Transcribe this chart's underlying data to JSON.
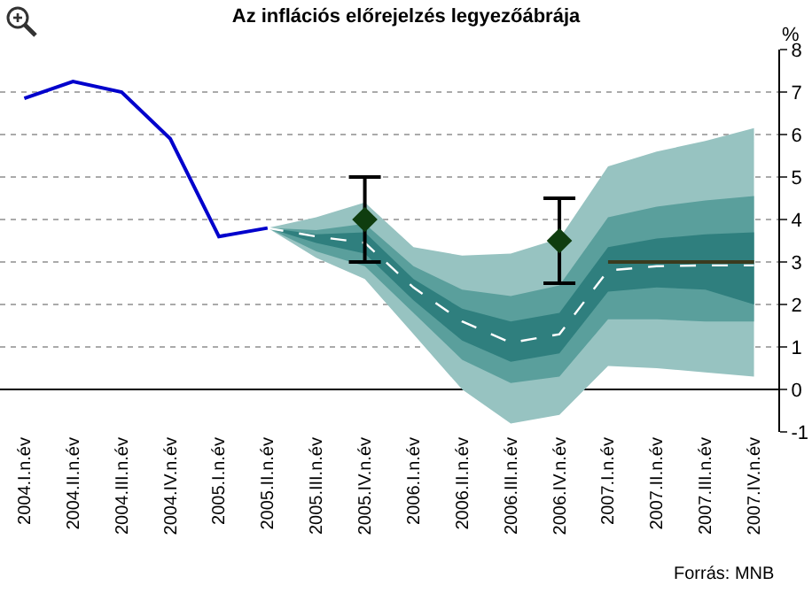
{
  "chart_data": {
    "type": "line",
    "title": "Az inflációs előrejelzés legyezőábrája",
    "ylabel": "%",
    "categories": [
      "2004.I.n.év",
      "2004.II.n.év",
      "2004.III.n.év",
      "2004.IV.n.év",
      "2005.I.n.év",
      "2005.II.n.év",
      "2005.III.n.év",
      "2005.IV.n.év",
      "2006.I.n.év",
      "2006.II.n.év",
      "2006.III.n.év",
      "2006.IV.n.év",
      "2007.I.n.év",
      "2007.II.n.év",
      "2007.III.n.év",
      "2007.IV.n.év"
    ],
    "series": [
      {
        "type": "line",
        "color": "#97c3c1",
        "values": [
          null,
          null,
          null,
          null,
          null,
          null,
          null,
          null,
          null,
          null,
          null,
          null,
          null,
          null,
          null,
          null
        ],
        "upper": [
          null,
          null,
          null,
          null,
          null,
          3.8,
          4.05,
          4.4,
          3.35,
          3.15,
          3.2,
          3.55,
          5.25,
          5.6,
          5.85,
          6.15
        ],
        "lower": [
          null,
          null,
          null,
          null,
          null,
          3.8,
          3.1,
          2.6,
          1.3,
          0.0,
          -0.8,
          -0.6,
          0.55,
          0.5,
          0.4,
          0.3
        ]
      },
      {
        "type": "line",
        "color": "#5a9f9c",
        "values": [
          null,
          null,
          null,
          null,
          null,
          null,
          null,
          null,
          null,
          null,
          null,
          null,
          null,
          null,
          null,
          null
        ],
        "upper": [
          null,
          null,
          null,
          null,
          null,
          3.8,
          3.75,
          3.9,
          2.9,
          2.35,
          2.2,
          2.45,
          4.05,
          4.3,
          4.45,
          4.55
        ],
        "lower": [
          null,
          null,
          null,
          null,
          null,
          3.8,
          3.25,
          2.9,
          1.8,
          0.7,
          0.15,
          0.3,
          1.65,
          1.65,
          1.6,
          1.6
        ]
      },
      {
        "type": "line",
        "color": "#2f7f7e",
        "values": [
          null,
          null,
          null,
          null,
          null,
          null,
          null,
          null,
          null,
          null,
          null,
          null,
          null,
          null,
          null,
          null
        ],
        "upper": [
          null,
          null,
          null,
          null,
          null,
          3.8,
          3.65,
          3.7,
          2.6,
          1.9,
          1.6,
          1.8,
          3.35,
          3.55,
          3.65,
          3.7
        ],
        "lower": [
          null,
          null,
          null,
          null,
          null,
          3.8,
          3.45,
          3.2,
          2.1,
          1.15,
          0.65,
          0.85,
          2.3,
          2.4,
          2.35,
          2.0
        ]
      },
      {
        "type": "line",
        "color": "#3b3b1e",
        "line_style": "solid",
        "values": [
          null,
          null,
          null,
          null,
          null,
          null,
          null,
          null,
          null,
          null,
          null,
          null,
          3,
          3,
          3,
          3
        ]
      },
      {
        "color": "#ffffff",
        "line_style": "dashed",
        "values": [
          null,
          null,
          null,
          null,
          null,
          3.8,
          3.6,
          3.45,
          2.4,
          1.6,
          1.1,
          1.3,
          2.8,
          2.9,
          2.92,
          2.92
        ]
      },
      {
        "type": "line",
        "color": "#0000cc",
        "line_style": "solid",
        "values": [
          6.85,
          7.25,
          7.0,
          5.9,
          3.6,
          3.8,
          null,
          null,
          null,
          null,
          null,
          null,
          null,
          null,
          null,
          null
        ]
      },
      {
        "type": "scatter",
        "color": "#0f3d0f",
        "marker": "diamond",
        "values": [
          null,
          null,
          null,
          null,
          null,
          null,
          null,
          4.0,
          null,
          null,
          null,
          3.5,
          null,
          null,
          null,
          null
        ],
        "errors": [
          null,
          null,
          null,
          null,
          null,
          null,
          null,
          1,
          null,
          null,
          null,
          1,
          null,
          null,
          null,
          null
        ]
      }
    ],
    "ylim": [
      -1,
      8
    ],
    "yticks": [
      -1,
      0,
      1,
      2,
      3,
      4,
      5,
      6,
      7,
      8
    ],
    "grid": "y",
    "annotations": [
      "Forrás: MNB"
    ]
  }
}
